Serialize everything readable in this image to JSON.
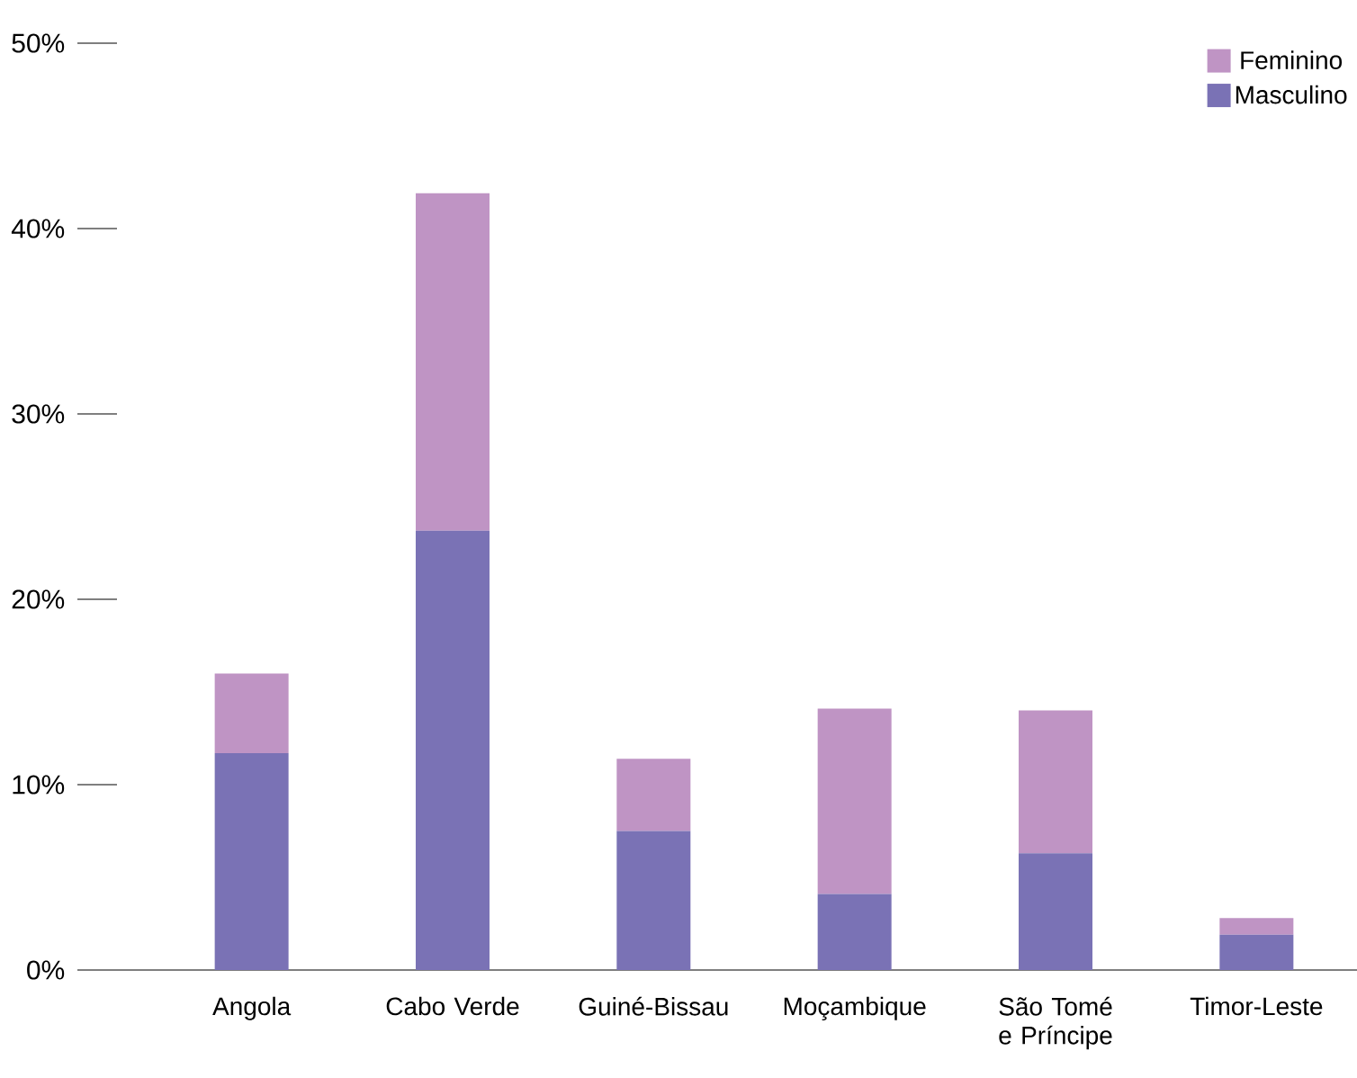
{
  "chart_data": {
    "type": "bar",
    "stacked": true,
    "categories": [
      "Angola",
      "Cabo Verde",
      "Guiné-Bissau",
      "Moçambique",
      "São Tomé e Príncipe",
      "Timor-Leste"
    ],
    "series": [
      {
        "name": "Masculino",
        "color": "#7a72b5",
        "values": [
          11.7,
          23.7,
          7.5,
          4.1,
          6.3,
          1.9
        ]
      },
      {
        "name": "Feminino",
        "color": "#bf94c4",
        "values": [
          4.3,
          18.2,
          3.9,
          10.0,
          7.7,
          0.9
        ]
      }
    ],
    "ylim": [
      0,
      50
    ],
    "yticks": [
      {
        "value": 0,
        "label": "0%"
      },
      {
        "value": 10,
        "label": "10%"
      },
      {
        "value": 20,
        "label": "20%"
      },
      {
        "value": 30,
        "label": "30%"
      },
      {
        "value": 40,
        "label": "40%"
      },
      {
        "value": 50,
        "label": "50%"
      }
    ],
    "grid": false,
    "legend": "top right"
  }
}
